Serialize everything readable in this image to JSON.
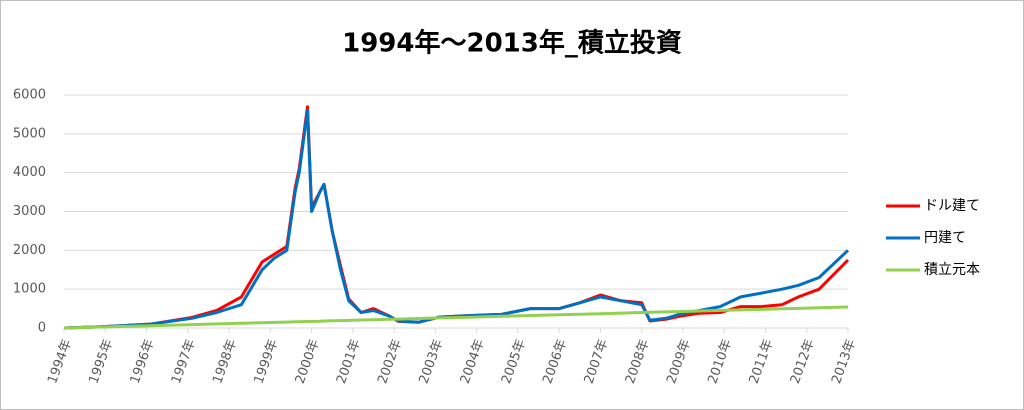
{
  "chart_data": {
    "type": "line",
    "title": "1994年～2013年_積立投資",
    "x": [
      1994.0,
      1994.9,
      1996.1,
      1997.1,
      1997.7,
      1998.3,
      1998.8,
      1999.1,
      1999.4,
      1999.6,
      1999.7,
      1999.9,
      2000.0,
      2000.2,
      2000.3,
      2000.5,
      2000.7,
      2000.9,
      2001.2,
      2001.5,
      2001.9,
      2002.1,
      2002.6,
      2003.1,
      2003.8,
      2004.6,
      2005.3,
      2006.0,
      2006.5,
      2007.0,
      2007.5,
      2008.0,
      2008.2,
      2008.6,
      2008.9,
      2009.4,
      2009.9,
      2010.4,
      2010.9,
      2011.4,
      2011.8,
      2012.3,
      2013.0
    ],
    "series": [
      {
        "name": "ドル建て",
        "color": "#ff0000",
        "values": [
          0,
          30,
          100,
          270,
          450,
          800,
          1700,
          1900,
          2100,
          3600,
          4100,
          5700,
          3100,
          3500,
          3700,
          2500,
          1600,
          750,
          400,
          500,
          300,
          170,
          150,
          280,
          320,
          350,
          500,
          500,
          650,
          850,
          700,
          650,
          180,
          230,
          300,
          380,
          400,
          550,
          550,
          600,
          800,
          1000,
          1750
        ]
      },
      {
        "name": "円建て",
        "color": "#0070c0",
        "values": [
          0,
          30,
          100,
          250,
          400,
          600,
          1500,
          1800,
          2000,
          3500,
          4000,
          5600,
          3000,
          3500,
          3700,
          2500,
          1500,
          700,
          400,
          450,
          300,
          180,
          150,
          280,
          320,
          350,
          500,
          500,
          650,
          800,
          700,
          600,
          200,
          250,
          350,
          450,
          550,
          800,
          900,
          1000,
          1100,
          1300,
          2000
        ]
      },
      {
        "name": "積立元本",
        "color": "#92d050",
        "values": [
          0,
          26,
          60,
          88,
          105,
          122,
          136,
          145,
          153,
          159,
          162,
          168,
          171,
          176,
          179,
          185,
          190,
          196,
          205,
          213,
          225,
          230,
          244,
          259,
          279,
          301,
          321,
          341,
          355,
          369,
          384,
          398,
          404,
          415,
          423,
          438,
          452,
          466,
          480,
          495,
          506,
          520,
          540
        ]
      }
    ],
    "xlim": [
      1994,
      2013
    ],
    "xticks": [
      {
        "value": 1994,
        "label": "1994年"
      },
      {
        "value": 1995,
        "label": "1995年"
      },
      {
        "value": 1996,
        "label": "1996年"
      },
      {
        "value": 1997,
        "label": "1997年"
      },
      {
        "value": 1998,
        "label": "1998年"
      },
      {
        "value": 1999,
        "label": "1999年"
      },
      {
        "value": 2000,
        "label": "2000年"
      },
      {
        "value": 2001,
        "label": "2001年"
      },
      {
        "value": 2002,
        "label": "2002年"
      },
      {
        "value": 2003,
        "label": "2003年"
      },
      {
        "value": 2004,
        "label": "2004年"
      },
      {
        "value": 2005,
        "label": "2005年"
      },
      {
        "value": 2006,
        "label": "2006年"
      },
      {
        "value": 2007,
        "label": "2007年"
      },
      {
        "value": 2008,
        "label": "2008年"
      },
      {
        "value": 2009,
        "label": "2009年"
      },
      {
        "value": 2010,
        "label": "2010年"
      },
      {
        "value": 2011,
        "label": "2011年"
      },
      {
        "value": 2012,
        "label": "2012年"
      },
      {
        "value": 2013,
        "label": "2013年"
      }
    ],
    "ylim": [
      0,
      6000
    ],
    "yticks": [
      0,
      1000,
      2000,
      3000,
      4000,
      5000,
      6000
    ],
    "grid": true,
    "legend": "right"
  }
}
